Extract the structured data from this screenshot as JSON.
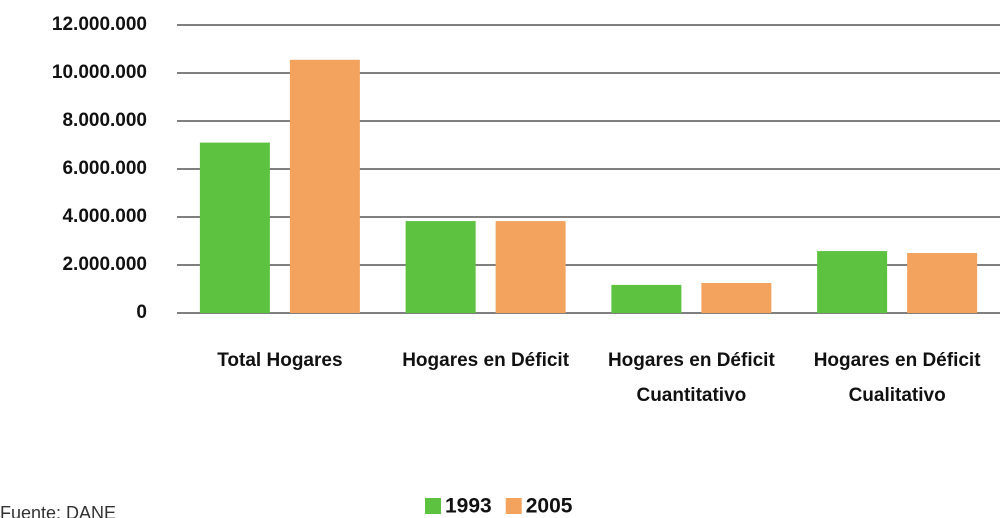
{
  "chart_data": {
    "type": "bar",
    "categories": [
      "Total Hogares",
      "Hogares en Déficit",
      "Hogares en Déficit Cuantitativo",
      "Hogares en Déficit Cualitativo"
    ],
    "series": [
      {
        "name": "1993",
        "color": "#5cc23f",
        "values": [
          7100000,
          3830000,
          1170000,
          2580000
        ]
      },
      {
        "name": "2005",
        "color": "#f4a35e",
        "values": [
          10550000,
          3830000,
          1250000,
          2500000
        ]
      }
    ],
    "ylim": [
      0,
      12000000
    ],
    "yticks": [
      0,
      {
        "value": 2000000,
        "label": "2.000.000"
      },
      {
        "value": 4000000,
        "label": "4.000.000"
      },
      {
        "value": 6000000,
        "label": "6.000.000"
      },
      {
        "value": 8000000,
        "label": "8.000.000"
      },
      {
        "value": 10000000,
        "label": "10.000.000"
      },
      {
        "value": 12000000,
        "label": "12.000.000"
      }
    ],
    "grid": true,
    "legend": "bottom",
    "source": "Fuente: DANE"
  }
}
